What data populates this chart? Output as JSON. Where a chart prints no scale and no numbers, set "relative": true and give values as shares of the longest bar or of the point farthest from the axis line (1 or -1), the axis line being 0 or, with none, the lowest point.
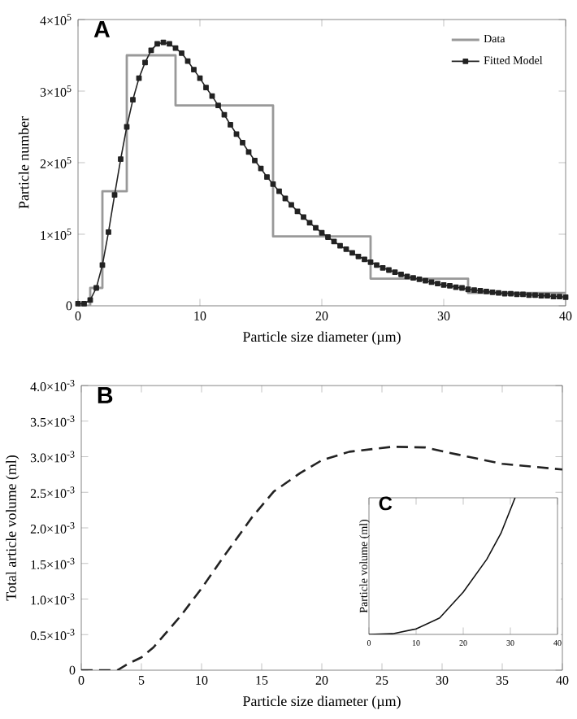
{
  "chart_data": [
    {
      "type": "line",
      "title": "A",
      "xlabel": "Particle size diameter (µm)",
      "ylabel": "Particle number",
      "xlim": [
        0,
        40
      ],
      "xticks": [
        0,
        10,
        20,
        30,
        40
      ],
      "ylim": [
        0,
        400000
      ],
      "yticks": [
        0,
        {
          "value": 100000,
          "label": "1×10$^{5}$"
        },
        {
          "value": 200000,
          "label": "2×10$^{5}$"
        },
        {
          "value": 300000,
          "label": "3×10$^{5}$"
        },
        {
          "value": 400000,
          "label": "4×10$^{5}$"
        }
      ],
      "legend": "top right",
      "series": [
        {
          "name": "Data",
          "type": "step",
          "color": "#999999",
          "x": [
            0,
            1,
            2,
            4,
            8,
            16,
            24,
            32,
            40
          ],
          "values": [
            0,
            25000,
            160000,
            350000,
            280000,
            97000,
            38000,
            18000,
            18000
          ]
        },
        {
          "name": "Fitted Model",
          "type": "line",
          "color": "#222222",
          "marker": "square",
          "x": [
            0,
            0.5,
            1,
            1.5,
            2,
            2.5,
            3,
            3.5,
            4,
            4.5,
            5,
            5.5,
            6,
            6.5,
            7,
            7.5,
            8,
            8.5,
            9,
            9.5,
            10,
            10.5,
            11,
            11.5,
            12,
            12.5,
            13,
            13.5,
            14,
            14.5,
            15,
            15.5,
            16,
            16.5,
            17,
            17.5,
            18,
            18.5,
            19,
            19.5,
            20,
            20.5,
            21,
            21.5,
            22,
            22.5,
            23,
            23.5,
            24,
            24.5,
            25,
            25.5,
            26,
            26.5,
            27,
            27.5,
            28,
            28.5,
            29,
            29.5,
            30,
            30.5,
            31,
            31.5,
            32,
            32.5,
            33,
            33.5,
            34,
            34.5,
            35,
            35.5,
            36,
            36.5,
            37,
            37.5,
            38,
            38.5,
            39,
            39.5,
            40
          ],
          "values": [
            3000,
            3000,
            8000,
            25000,
            57000,
            103000,
            155000,
            205000,
            250000,
            288000,
            318000,
            340000,
            357000,
            366000,
            368000,
            366000,
            360000,
            353000,
            342000,
            330000,
            318000,
            305000,
            293000,
            280000,
            267000,
            253000,
            240000,
            228000,
            215000,
            203000,
            192000,
            180000,
            170000,
            160000,
            150000,
            141000,
            132000,
            124000,
            116000,
            109000,
            102000,
            96000,
            90000,
            84000,
            79000,
            74000,
            69000,
            65000,
            61000,
            57000,
            53000,
            50000,
            47000,
            44000,
            41000,
            39000,
            37000,
            35000,
            33000,
            31000,
            29000,
            28000,
            26000,
            25000,
            23000,
            22000,
            21000,
            20000,
            19000,
            18000,
            17000,
            17000,
            16000,
            16000,
            15000,
            15000,
            14000,
            14000,
            13000,
            13000,
            12000
          ]
        }
      ]
    },
    {
      "type": "line",
      "title": "B",
      "xlabel": "Particle size diameter (µm)",
      "ylabel": "Total article volume (ml)",
      "xlim": [
        0,
        40
      ],
      "xticks": [
        0,
        5,
        10,
        15,
        20,
        25,
        30,
        35,
        40
      ],
      "ylim": [
        0,
        0.004
      ],
      "yticks": [
        0,
        {
          "value": 0.0005,
          "label": "0.5×10$^{-3}$"
        },
        {
          "value": 0.001,
          "label": "1.0×10$^{-3}$"
        },
        {
          "value": 0.0015,
          "label": "1.5×10$^{-3}$"
        },
        {
          "value": 0.002,
          "label": "2.0×10$^{-3}$"
        },
        {
          "value": 0.0025,
          "label": "2.5×10$^{-3}$"
        },
        {
          "value": 0.003,
          "label": "3.0×10$^{-3}$"
        },
        {
          "value": 0.0035,
          "label": "3.5×10$^{-3}$"
        },
        {
          "value": 0.004,
          "label": "4.0×10$^{-3}$"
        }
      ],
      "series": [
        {
          "color": "#222222",
          "line_style": "dashed",
          "x": [
            0,
            2,
            3,
            4,
            5,
            6,
            8.3,
            10,
            11.9,
            14.2,
            16,
            18.2,
            20,
            22.3,
            25.9,
            28.6,
            31.3,
            35,
            40
          ],
          "values": [
            0,
            0,
            0,
            0.0001,
            0.00018,
            0.00032,
            0.00077,
            0.00115,
            0.00161,
            0.00215,
            0.00251,
            0.00277,
            0.00295,
            0.00307,
            0.00314,
            0.00313,
            0.00303,
            0.0029,
            0.00282
          ]
        }
      ]
    },
    {
      "type": "line",
      "title": "C",
      "ylabel": "Particle volume (ml)",
      "relative": true,
      "tick_labels": "x",
      "xlim": [
        0,
        40
      ],
      "xticks": [
        0,
        10,
        20,
        30,
        40
      ],
      "series": [
        {
          "color": "#111111",
          "x": [
            0,
            5,
            10,
            15,
            20,
            25,
            28,
            31
          ],
          "values": [
            0,
            0.005,
            0.04,
            0.12,
            0.31,
            0.55,
            0.74,
            1.0
          ]
        }
      ]
    }
  ]
}
